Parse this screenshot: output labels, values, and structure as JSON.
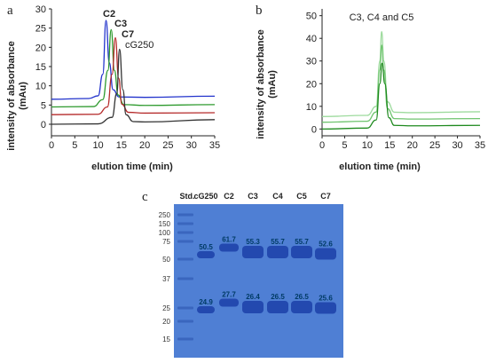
{
  "chart_data": [
    {
      "panel": "a",
      "type": "line",
      "title": "",
      "xlabel": "elution time (min)",
      "ylabel": "intensity of absorbance (mAu)",
      "xlim": [
        0,
        35
      ],
      "ylim": [
        -3,
        30
      ],
      "xticks": [
        "0",
        "5",
        "10",
        "15",
        "20",
        "25",
        "30",
        "35"
      ],
      "yticks": [
        "0",
        "5",
        "10",
        "15",
        "20",
        "25",
        "30"
      ],
      "series": [
        {
          "name": "C2",
          "color": "#2233cc",
          "points": [
            [
              0,
              6.5
            ],
            [
              8,
              6.7
            ],
            [
              10,
              7.4
            ],
            [
              11,
              13
            ],
            [
              11.7,
              27
            ],
            [
              12.4,
              16
            ],
            [
              13.2,
              9
            ],
            [
              14.5,
              7.1
            ],
            [
              20,
              7
            ],
            [
              35,
              7.3
            ]
          ]
        },
        {
          "name": "C3",
          "color": "#2e9a2e",
          "points": [
            [
              0,
              4.5
            ],
            [
              9,
              4.6
            ],
            [
              11,
              6.4
            ],
            [
              12.1,
              14
            ],
            [
              12.8,
              24.6
            ],
            [
              13.5,
              14
            ],
            [
              14.3,
              7.6
            ],
            [
              15.5,
              5.1
            ],
            [
              20,
              4.9
            ],
            [
              35,
              5.1
            ]
          ]
        },
        {
          "name": "C7",
          "color": "#b52a2a",
          "points": [
            [
              0,
              2.5
            ],
            [
              10,
              2.6
            ],
            [
              12,
              4.5
            ],
            [
              13,
              13
            ],
            [
              13.7,
              22.5
            ],
            [
              14.4,
              12
            ],
            [
              15.1,
              5.2
            ],
            [
              16.5,
              3.1
            ],
            [
              20,
              2.9
            ],
            [
              35,
              3.0
            ]
          ]
        },
        {
          "name": "cG250",
          "color": "#333333",
          "points": [
            [
              0,
              0
            ],
            [
              10,
              0.1
            ],
            [
              13,
              1.8
            ],
            [
              14,
              8
            ],
            [
              14.6,
              19.5
            ],
            [
              15.3,
              9
            ],
            [
              16,
              2.5
            ],
            [
              17.5,
              0.7
            ],
            [
              20,
              0.6
            ],
            [
              35,
              1.2
            ]
          ]
        }
      ]
    },
    {
      "panel": "b",
      "type": "line",
      "title": "C3, C4 and C5",
      "xlabel": "elution time (min)",
      "ylabel": "intensity of absorbance (mAu)",
      "xlim": [
        0,
        35
      ],
      "ylim": [
        -3,
        53
      ],
      "xticks": [
        "0",
        "5",
        "10",
        "15",
        "20",
        "25",
        "30",
        "35"
      ],
      "yticks": [
        "0",
        "10",
        "20",
        "30",
        "40",
        "50"
      ],
      "series": [
        {
          "name": "C3",
          "color": "#9edb9e",
          "points": [
            [
              0,
              5.5
            ],
            [
              10,
              6
            ],
            [
              12,
              10
            ],
            [
              12.8,
              30
            ],
            [
              13.2,
              43
            ],
            [
              13.7,
              30
            ],
            [
              14.5,
              12
            ],
            [
              16,
              7.4
            ],
            [
              20,
              7.2
            ],
            [
              35,
              7.6
            ]
          ]
        },
        {
          "name": "C4",
          "color": "#6fc46f",
          "points": [
            [
              0,
              3
            ],
            [
              10,
              3.4
            ],
            [
              12,
              7.5
            ],
            [
              12.8,
              26
            ],
            [
              13.2,
              37
            ],
            [
              13.7,
              26
            ],
            [
              14.5,
              9
            ],
            [
              16,
              4.6
            ],
            [
              20,
              4.4
            ],
            [
              35,
              4.6
            ]
          ]
        },
        {
          "name": "C5",
          "color": "#1f8a1f",
          "points": [
            [
              0,
              0
            ],
            [
              10,
              0.4
            ],
            [
              12,
              4
            ],
            [
              12.8,
              20
            ],
            [
              13.3,
              29
            ],
            [
              13.9,
              20
            ],
            [
              14.8,
              5
            ],
            [
              16,
              1.6
            ],
            [
              20,
              1.4
            ],
            [
              35,
              1.6
            ]
          ]
        }
      ]
    },
    {
      "panel": "c",
      "type": "table",
      "title": "",
      "lane_headers": [
        "Std.",
        "cG250",
        "C2",
        "C3",
        "C4",
        "C5",
        "C7"
      ],
      "marker_kda": [
        "250",
        "150",
        "100",
        "75",
        "50",
        "37",
        "25",
        "20",
        "15"
      ],
      "band_labels": [
        {
          "lane": "cG250",
          "upper": "50.5",
          "lower": "24.9"
        },
        {
          "lane": "C2",
          "upper": "61.7",
          "lower": "27.7"
        },
        {
          "lane": "C3",
          "upper": "55.3",
          "lower": "26.4"
        },
        {
          "lane": "C4",
          "upper": "55.7",
          "lower": "26.5"
        },
        {
          "lane": "C5",
          "upper": "55.7",
          "lower": "26.5"
        },
        {
          "lane": "C7",
          "upper": "52.6",
          "lower": "25.6"
        }
      ]
    }
  ],
  "panel_letters": [
    "a",
    "b",
    "c"
  ],
  "colors": {
    "gel_background": "#4f7fd4",
    "gel_band": "#1b3fa8"
  }
}
